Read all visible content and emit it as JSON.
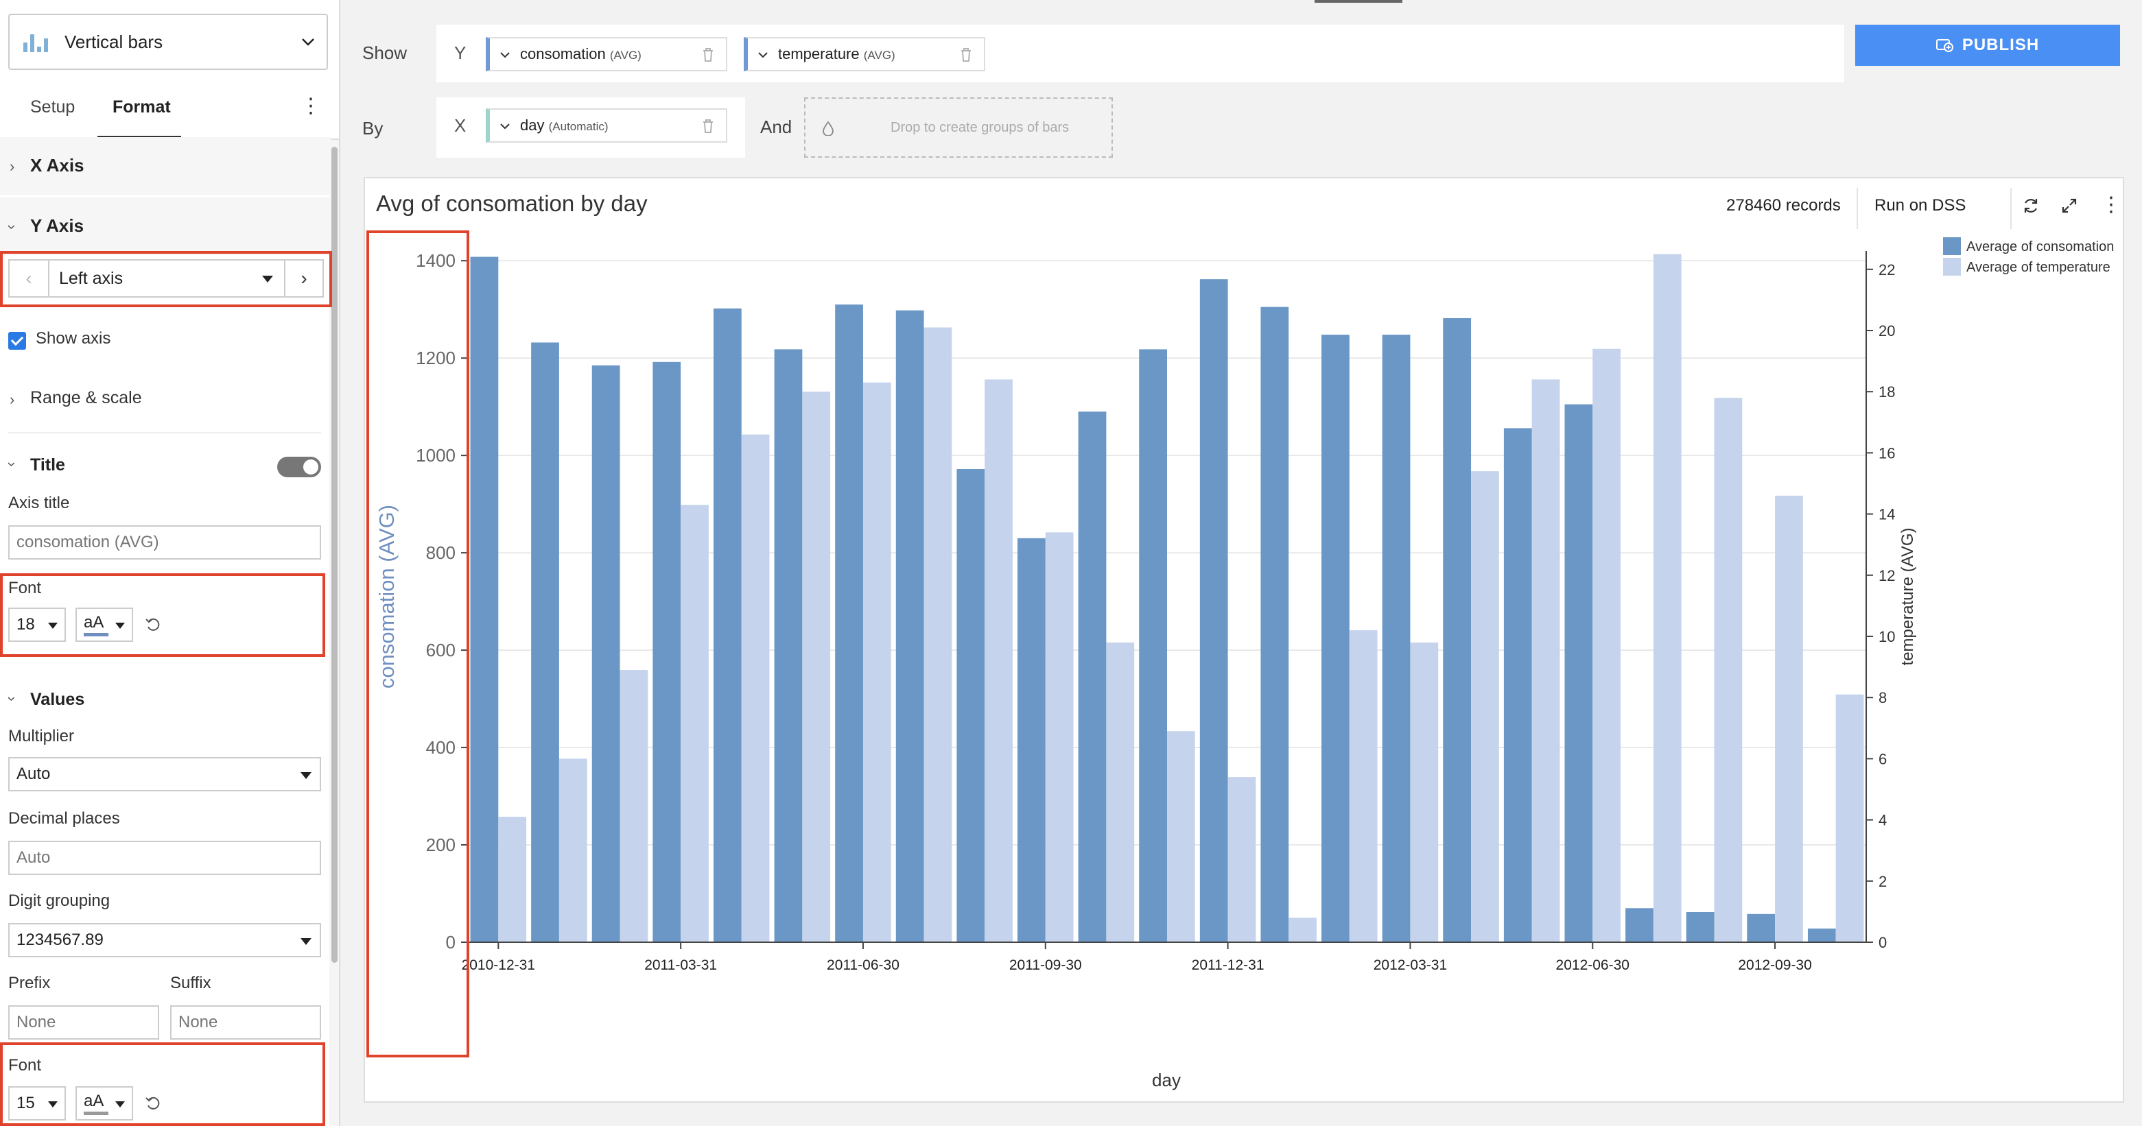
{
  "sidebar": {
    "chart_type": "Vertical bars",
    "tabs": [
      {
        "label": "Setup"
      },
      {
        "label": "Format"
      }
    ],
    "sections": {
      "x_axis": "X Axis",
      "y_axis": "Y Axis",
      "range_scale": "Range & scale",
      "title": "Title",
      "values": "Values"
    },
    "axis_selector": "Left axis",
    "show_axis_label": "Show axis",
    "axis_title_label": "Axis title",
    "axis_title_placeholder": "consomation (AVG)",
    "font_label": "Font",
    "title_font_size": "18",
    "values_font_size": "15",
    "font_style_label": "aA",
    "font_swatch_title": "#6f8fc0",
    "font_swatch_values": "#999999",
    "multiplier_label": "Multiplier",
    "multiplier_value": "Auto",
    "decimal_label": "Decimal places",
    "decimal_placeholder": "Auto",
    "digit_grouping_label": "Digit grouping",
    "digit_grouping_value": "1234567.89",
    "prefix_label": "Prefix",
    "prefix_placeholder": "None",
    "suffix_label": "Suffix",
    "suffix_placeholder": "None"
  },
  "shelves": {
    "show_label": "Show",
    "by_label": "By",
    "y_axis": "Y",
    "x_axis": "X",
    "and_label": "And",
    "y_pills": [
      {
        "name": "consomation",
        "agg": "(AVG)"
      },
      {
        "name": "temperature",
        "agg": "(AVG)"
      }
    ],
    "x_pill": {
      "name": "day",
      "agg": "(Automatic)"
    },
    "drop_zone": "Drop to create groups of bars",
    "publish": "PUBLISH"
  },
  "card": {
    "title": "Avg of consomation by day",
    "records": "278460 records",
    "run_on": "Run on DSS"
  },
  "colors": {
    "primary_series": "#6a97c5",
    "secondary_series": "#c5d4ec",
    "highlight_red": "#e0432b",
    "publish_blue": "#4a8ff3"
  },
  "chart_data": {
    "type": "bar",
    "title": "Avg of consomation by day",
    "xlabel": "day",
    "ylabel": "consomation (AVG)",
    "y2label": "temperature (AVG)",
    "ylim": [
      0,
      1420
    ],
    "y2lim": [
      0,
      22.6
    ],
    "yticks": [
      0,
      200,
      400,
      600,
      800,
      1000,
      1200,
      1400
    ],
    "y2ticks": [
      0,
      2,
      4,
      6,
      8,
      10,
      12,
      14,
      16,
      18,
      20,
      22
    ],
    "xtick_labels": [
      {
        "label": "2010-12-31",
        "at": 0
      },
      {
        "label": "2011-03-31",
        "at": 3
      },
      {
        "label": "2011-06-30",
        "at": 6
      },
      {
        "label": "2011-09-30",
        "at": 9
      },
      {
        "label": "2011-12-31",
        "at": 12
      },
      {
        "label": "2012-03-31",
        "at": 15
      },
      {
        "label": "2012-06-30",
        "at": 18
      },
      {
        "label": "2012-09-30",
        "at": 21
      }
    ],
    "legend": "top-right",
    "grid": true,
    "series": [
      {
        "name": "Average of consomation",
        "axis": "left",
        "values": [
          1408,
          1232,
          1185,
          1192,
          1302,
          1218,
          1310,
          1298,
          972,
          830,
          1090,
          1218,
          1362,
          1305,
          1248,
          1248,
          1282,
          1056,
          1105,
          70,
          62,
          58,
          28
        ]
      },
      {
        "name": "Average of temperature",
        "axis": "right",
        "values": [
          4.1,
          6.0,
          8.9,
          14.3,
          16.6,
          18.0,
          18.3,
          20.1,
          18.4,
          13.4,
          9.8,
          6.9,
          5.4,
          0.8,
          10.2,
          9.8,
          15.4,
          18.4,
          19.4,
          22.5,
          17.8,
          14.6,
          8.1
        ]
      }
    ]
  }
}
